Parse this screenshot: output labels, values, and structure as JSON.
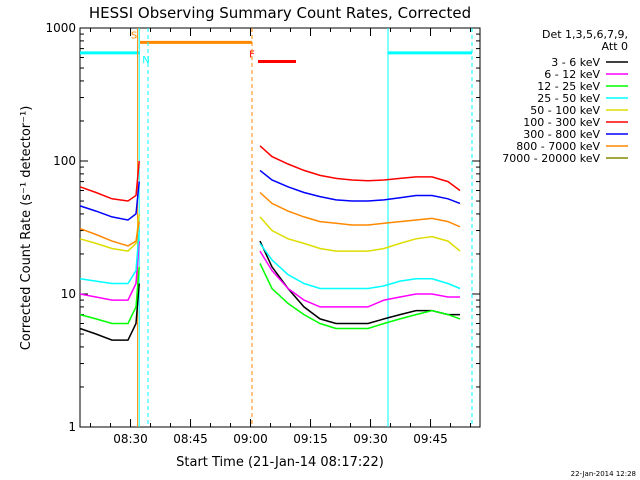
{
  "chart_data": {
    "type": "line",
    "title": "HESSI Observing Summary Count Rates, Corrected",
    "xlabel": "Start Time (21-Jan-14 08:17:22)",
    "ylabel": "Corrected Count Rate (s⁻¹ detector⁻¹)",
    "y_scale": "log",
    "ylim": [
      1,
      1000
    ],
    "xlim_minutes_after_start": [
      0,
      100
    ],
    "x_start_time": "08:17:22",
    "x_ticks": [
      "08:30",
      "08:45",
      "09:00",
      "09:15",
      "09:30",
      "09:45"
    ],
    "x_tick_minutes": [
      12.63,
      27.63,
      42.63,
      57.63,
      72.63,
      87.63
    ],
    "y_ticks": [
      "1",
      "10",
      "100",
      "1000"
    ],
    "y_tick_values": [
      1,
      10,
      100,
      1000
    ],
    "legend_header": [
      "Det 1,3,5,6,7,9,",
      "Att 0"
    ],
    "legend_position": "right",
    "timestamp": "22-Jan-2014 12:28",
    "grid": false,
    "x": [
      0,
      4,
      8,
      12,
      14,
      14.8,
      45,
      48,
      52,
      56,
      60,
      64,
      68,
      72,
      76,
      80,
      84,
      88,
      92,
      95
    ],
    "series": [
      {
        "name": "3 - 6 keV",
        "color": "#000000",
        "values": [
          5.5,
          5.0,
          4.5,
          4.5,
          6.0,
          12,
          25,
          16,
          11,
          8,
          6.5,
          6,
          6,
          6,
          6.5,
          7,
          7.5,
          7.5,
          7,
          7
        ]
      },
      {
        "name": "6 - 12 keV",
        "color": "#ff00ff",
        "values": [
          10,
          9.5,
          9,
          9,
          12,
          25,
          21,
          15,
          11,
          9,
          8,
          8,
          8,
          8,
          9,
          9.5,
          10,
          10,
          9.5,
          9.5
        ]
      },
      {
        "name": "12 - 25 keV",
        "color": "#00ff00",
        "values": [
          7,
          6.5,
          6,
          6,
          8,
          16,
          17,
          11,
          8.5,
          7,
          6,
          5.5,
          5.5,
          5.5,
          6,
          6.5,
          7,
          7.5,
          7,
          6.5
        ]
      },
      {
        "name": "25 - 50 keV",
        "color": "#00ffff",
        "values": [
          13,
          12.5,
          12,
          12,
          15,
          30,
          24,
          18,
          14,
          12,
          11,
          11,
          11,
          11,
          11.5,
          12.5,
          13,
          13,
          12,
          11
        ]
      },
      {
        "name": "50 - 100 keV",
        "color": "#dddd00",
        "values": [
          26,
          24,
          22,
          21,
          24,
          40,
          38,
          30,
          26,
          24,
          22,
          21,
          21,
          21,
          22,
          24,
          26,
          27,
          25,
          21
        ]
      },
      {
        "name": "100 - 300 keV",
        "color": "#ff0000",
        "values": [
          64,
          58,
          52,
          50,
          55,
          100,
          130,
          108,
          95,
          85,
          78,
          74,
          72,
          71,
          72,
          74,
          76,
          76,
          70,
          60
        ]
      },
      {
        "name": "300 - 800 keV",
        "color": "#0000ff",
        "values": [
          46,
          42,
          38,
          36,
          40,
          70,
          85,
          72,
          64,
          58,
          54,
          51,
          50,
          50,
          51,
          53,
          55,
          55,
          52,
          48
        ]
      },
      {
        "name": "800 - 7000 keV",
        "color": "#ff8800",
        "values": [
          31,
          28,
          25,
          23,
          25,
          35,
          58,
          48,
          42,
          38,
          35,
          34,
          33,
          33,
          34,
          35,
          36,
          37,
          35,
          32
        ]
      },
      {
        "name": "7000 - 20000 keV",
        "color": "#888800",
        "values": [
          null,
          null,
          null,
          null,
          null,
          null,
          null,
          null,
          null,
          null,
          null,
          null,
          null,
          null,
          null,
          null,
          null,
          null,
          null,
          null
        ]
      }
    ],
    "intervals": [
      {
        "label": "N",
        "type": "night",
        "color": "#00ffff",
        "x": [
          0,
          15.0
        ],
        "value": 650
      },
      {
        "label": "",
        "type": "night",
        "color": "#00ffff",
        "x": [
          77,
          98
        ],
        "value": 650
      },
      {
        "label": "S",
        "type": "saa",
        "color": "#ff8800",
        "x": [
          15.0,
          43.0
        ],
        "value": 780
      },
      {
        "label": "F",
        "type": "flare",
        "color": "#ff0000",
        "x": [
          44.5,
          54
        ],
        "value": 560
      }
    ],
    "vertical_markers": [
      {
        "x": 14.8,
        "color": "#00ffff",
        "style": "solid"
      },
      {
        "x": 17.0,
        "color": "#00ffff",
        "style": "dashed"
      },
      {
        "x": 14.4,
        "color": "#ff8800",
        "style": "solid"
      },
      {
        "x": 43.0,
        "color": "#ff8800",
        "style": "dashed"
      },
      {
        "x": 77.0,
        "color": "#00ffff",
        "style": "solid"
      },
      {
        "x": 98.0,
        "color": "#00ffff",
        "style": "dashed"
      }
    ]
  }
}
